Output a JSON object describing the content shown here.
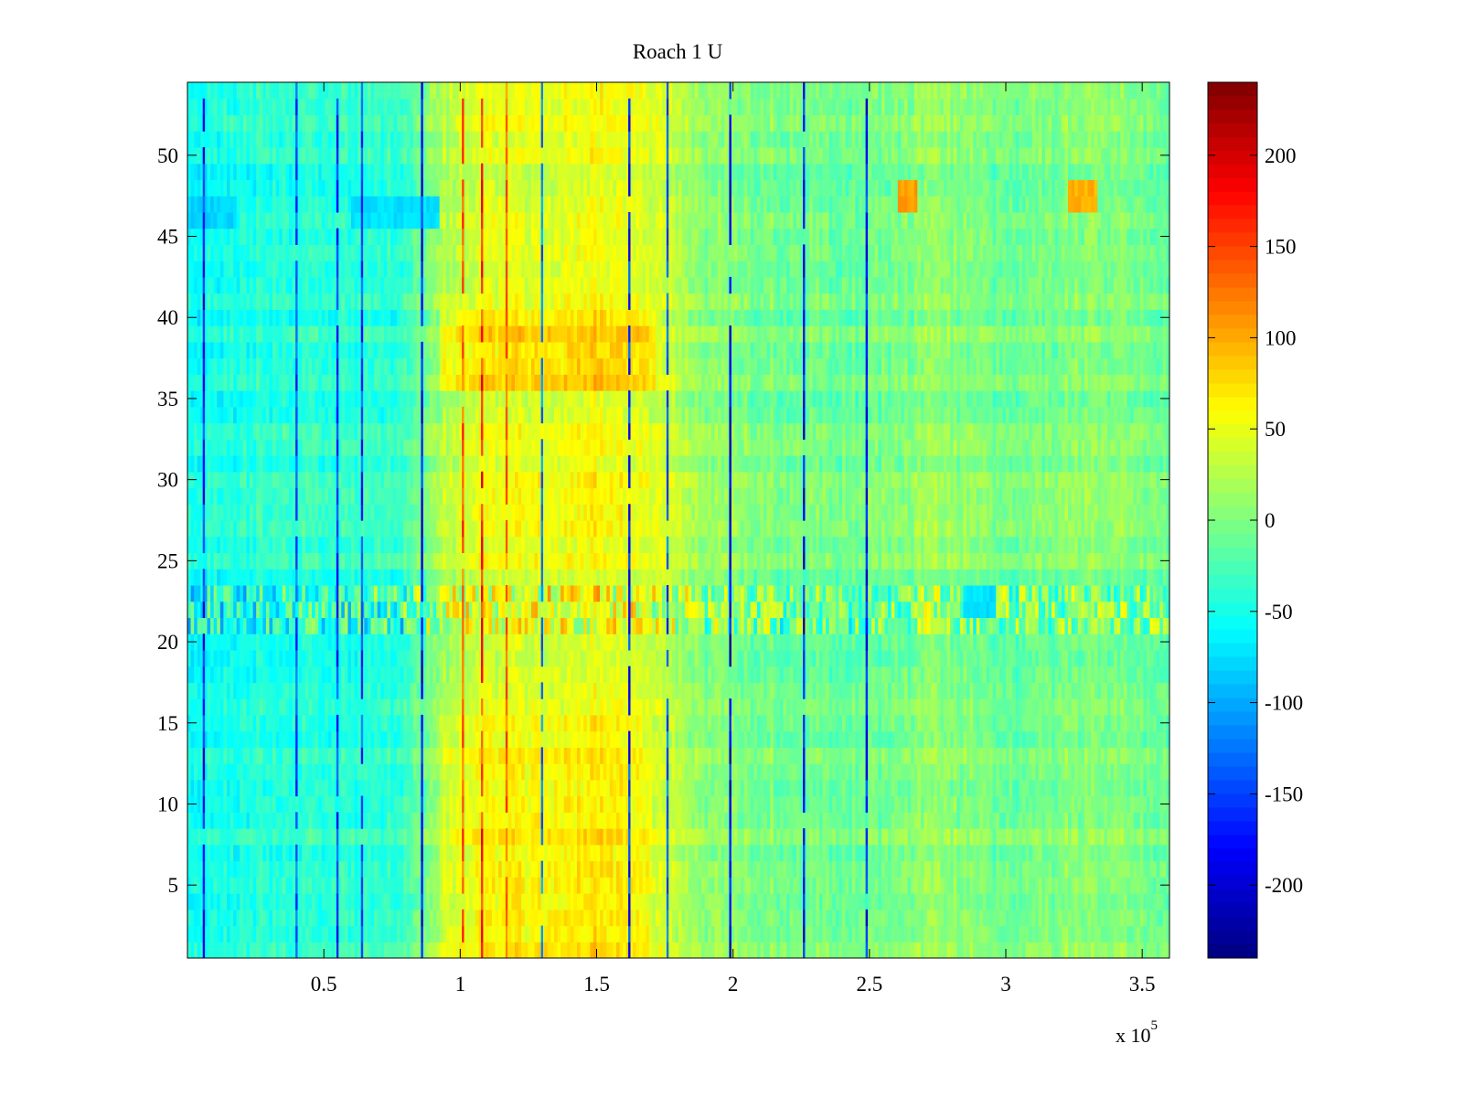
{
  "chart_data": {
    "type": "heatmap",
    "title": "Roach 1 U",
    "xlabel": "",
    "ylabel": "",
    "xlim": [
      0,
      360000
    ],
    "ylim": [
      0.5,
      54.5
    ],
    "x_ticks": [
      50000,
      100000,
      150000,
      200000,
      250000,
      300000,
      350000
    ],
    "x_tick_labels": [
      "0.5",
      "1",
      "1.5",
      "2",
      "2.5",
      "3",
      "3.5"
    ],
    "x_exponent_label": "x 10",
    "x_exponent_power": "5",
    "y_ticks": [
      5,
      10,
      15,
      20,
      25,
      30,
      35,
      40,
      45,
      50
    ],
    "y_tick_labels": [
      "5",
      "10",
      "15",
      "20",
      "25",
      "30",
      "35",
      "40",
      "45",
      "50"
    ],
    "rows": 54,
    "colormap": "jet",
    "colorbar": {
      "clim": [
        -240,
        240
      ],
      "ticks": [
        200,
        150,
        100,
        50,
        0,
        -50,
        -100,
        -150,
        -200
      ],
      "tick_labels": [
        "200",
        "150",
        "100",
        "50",
        "0",
        "-50",
        "-100",
        "-150",
        "-200"
      ]
    },
    "column_profile": {
      "x": [
        0,
        20000,
        40000,
        60000,
        80000,
        92000,
        110000,
        130000,
        150000,
        172000,
        190000,
        220000,
        250000,
        275000,
        300000,
        330000,
        360000
      ],
      "values": [
        -55,
        -45,
        -40,
        -40,
        -35,
        20,
        45,
        45,
        55,
        40,
        5,
        -5,
        -10,
        10,
        -10,
        5,
        -10
      ]
    },
    "row_band_1": {
      "y": [
        36,
        37,
        38,
        39,
        40
      ],
      "x_range": [
        92000,
        172000
      ],
      "added_value": 30
    },
    "row_band_2": {
      "y": [
        1,
        2,
        3,
        4,
        5,
        6,
        7,
        8,
        9,
        10,
        11,
        12,
        13,
        14,
        15
      ],
      "x_range": [
        92000,
        170000
      ],
      "added_value": 15
    },
    "row_band_3": {
      "y": [
        21,
        22,
        23
      ],
      "x_range": [
        0,
        360000
      ],
      "added_value": 0,
      "noise_scale": 2.0
    },
    "hotspots": [
      {
        "x_range": [
          261000,
          268000
        ],
        "y": [
          47,
          48
        ],
        "value": 105
      },
      {
        "x_range": [
          323000,
          333000
        ],
        "y": [
          47,
          48
        ],
        "value": 95
      },
      {
        "x_range": [
          284000,
          296000
        ],
        "y": [
          22,
          23
        ],
        "value": -75
      },
      {
        "x_range": [
          0,
          18000
        ],
        "y": [
          46,
          47
        ],
        "value": -80
      },
      {
        "x_range": [
          60000,
          92000
        ],
        "y": [
          46,
          47
        ],
        "value": -75
      }
    ],
    "strong_columns": [
      {
        "x": 6000,
        "value": -180
      },
      {
        "x": 40000,
        "value": -150
      },
      {
        "x": 55000,
        "value": -170
      },
      {
        "x": 64000,
        "value": -160
      },
      {
        "x": 86000,
        "value": -190
      },
      {
        "x": 101000,
        "value": 150
      },
      {
        "x": 108000,
        "value": 170
      },
      {
        "x": 117000,
        "value": 140
      },
      {
        "x": 130000,
        "value": -130
      },
      {
        "x": 162000,
        "value": -170
      },
      {
        "x": 176000,
        "value": -150
      },
      {
        "x": 199000,
        "value": -200
      },
      {
        "x": 226000,
        "value": -190
      },
      {
        "x": 249000,
        "value": -180
      }
    ]
  }
}
